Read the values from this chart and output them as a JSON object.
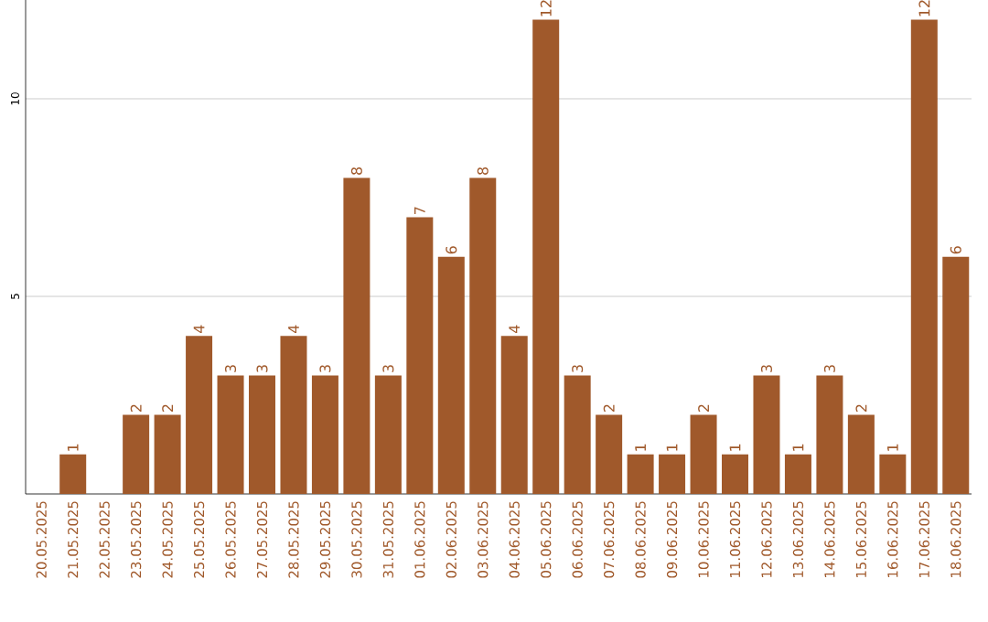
{
  "chart_data": {
    "type": "bar",
    "categories": [
      "20.05.2025",
      "21.05.2025",
      "22.05.2025",
      "23.05.2025",
      "24.05.2025",
      "25.05.2025",
      "26.05.2025",
      "27.05.2025",
      "28.05.2025",
      "29.05.2025",
      "30.05.2025",
      "31.05.2025",
      "01.06.2025",
      "02.06.2025",
      "03.06.2025",
      "04.06.2025",
      "05.06.2025",
      "06.06.2025",
      "07.06.2025",
      "08.06.2025",
      "09.06.2025",
      "10.06.2025",
      "11.06.2025",
      "12.06.2025",
      "13.06.2025",
      "14.06.2025",
      "15.06.2025",
      "16.06.2025",
      "17.06.2025",
      "18.06.2025"
    ],
    "values": [
      0,
      1,
      0,
      2,
      2,
      4,
      3,
      3,
      4,
      3,
      8,
      3,
      7,
      6,
      8,
      4,
      12,
      3,
      2,
      1,
      1,
      2,
      1,
      3,
      1,
      3,
      2,
      1,
      12,
      6
    ],
    "value_labels": [
      null,
      "1",
      null,
      "2",
      "2",
      "4",
      "3",
      "3",
      "4",
      "3",
      "8",
      "3",
      "7",
      "6",
      "8",
      "4",
      "12",
      "3",
      "2",
      "1",
      "1",
      "2",
      "1",
      "3",
      "1",
      "3",
      "2",
      "1",
      "12",
      "6"
    ],
    "color": "#a0592b",
    "ylim": [
      0,
      12.5
    ],
    "yticks": [
      5,
      10
    ],
    "grid": "y"
  }
}
